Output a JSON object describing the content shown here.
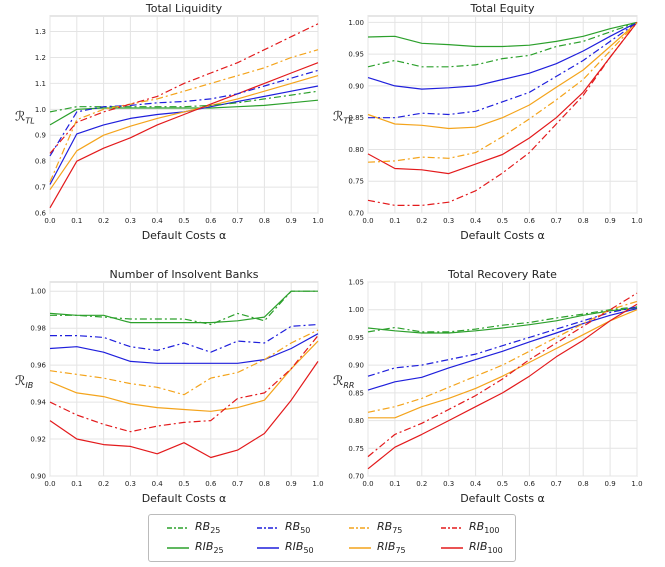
{
  "chart_data": [
    {
      "type": "line",
      "title": "Total Liquidity",
      "xlabel": "Default Costs α",
      "ylabel": "R_TL",
      "ylabel_base": "ℛ",
      "ylabel_sub": "TL",
      "xlim": [
        0.0,
        1.0
      ],
      "ylim": [
        0.6,
        1.36
      ],
      "x": [
        0.0,
        0.1,
        0.2,
        0.3,
        0.4,
        0.5,
        0.6,
        0.7,
        0.8,
        0.9,
        1.0
      ],
      "xticks": [
        "0.0",
        "0.1",
        "0.2",
        "0.3",
        "0.4",
        "0.5",
        "0.6",
        "0.7",
        "0.8",
        "0.9",
        "1.0"
      ],
      "yticks": [
        "0.6",
        "0.7",
        "0.8",
        "0.9",
        "1.0",
        "1.1",
        "1.2",
        "1.3"
      ],
      "series": [
        {
          "name": "RB_25",
          "values": [
            0.99,
            1.01,
            1.01,
            1.01,
            1.01,
            1.01,
            1.015,
            1.025,
            1.04,
            1.055,
            1.07
          ]
        },
        {
          "name": "RIB_25",
          "values": [
            0.94,
            1.0,
            1.005,
            1.005,
            1.005,
            1.005,
            1.005,
            1.01,
            1.015,
            1.025,
            1.035
          ]
        },
        {
          "name": "RB_50",
          "values": [
            0.82,
            0.99,
            1.01,
            1.015,
            1.025,
            1.03,
            1.04,
            1.06,
            1.09,
            1.12,
            1.15
          ]
        },
        {
          "name": "RIB_50",
          "values": [
            0.71,
            0.905,
            0.94,
            0.965,
            0.98,
            0.99,
            1.01,
            1.03,
            1.05,
            1.07,
            1.09
          ]
        },
        {
          "name": "RB_75",
          "values": [
            0.72,
            0.96,
            1.0,
            1.02,
            1.04,
            1.07,
            1.1,
            1.13,
            1.16,
            1.2,
            1.23
          ]
        },
        {
          "name": "RIB_75",
          "values": [
            0.69,
            0.84,
            0.9,
            0.935,
            0.965,
            0.99,
            1.015,
            1.04,
            1.07,
            1.1,
            1.13
          ]
        },
        {
          "name": "RB_100",
          "values": [
            0.83,
            0.95,
            0.99,
            1.02,
            1.05,
            1.1,
            1.14,
            1.18,
            1.23,
            1.28,
            1.33
          ]
        },
        {
          "name": "RIB_100",
          "values": [
            0.62,
            0.8,
            0.85,
            0.89,
            0.94,
            0.98,
            1.02,
            1.06,
            1.1,
            1.14,
            1.18
          ]
        }
      ]
    },
    {
      "type": "line",
      "title": "Total Equity",
      "xlabel": "Default Costs α",
      "ylabel": "R_TE",
      "ylabel_base": "ℛ",
      "ylabel_sub": "TE",
      "xlim": [
        0.0,
        1.0
      ],
      "ylim": [
        0.7,
        1.01
      ],
      "x": [
        0.0,
        0.1,
        0.2,
        0.3,
        0.4,
        0.5,
        0.6,
        0.7,
        0.8,
        0.9,
        1.0
      ],
      "xticks": [
        "0.0",
        "0.1",
        "0.2",
        "0.3",
        "0.4",
        "0.5",
        "0.6",
        "0.7",
        "0.8",
        "0.9",
        "1.0"
      ],
      "yticks": [
        "0.70",
        "0.75",
        "0.80",
        "0.85",
        "0.90",
        "0.95",
        "1.00"
      ],
      "series": [
        {
          "name": "RB_25",
          "values": [
            0.93,
            0.94,
            0.93,
            0.93,
            0.933,
            0.943,
            0.948,
            0.962,
            0.97,
            0.985,
            1.0
          ]
        },
        {
          "name": "RIB_25",
          "values": [
            0.977,
            0.978,
            0.967,
            0.965,
            0.962,
            0.962,
            0.964,
            0.97,
            0.978,
            0.99,
            1.0
          ]
        },
        {
          "name": "RB_50",
          "values": [
            0.85,
            0.85,
            0.857,
            0.855,
            0.86,
            0.875,
            0.89,
            0.915,
            0.94,
            0.97,
            1.0
          ]
        },
        {
          "name": "RIB_50",
          "values": [
            0.913,
            0.9,
            0.895,
            0.897,
            0.9,
            0.91,
            0.92,
            0.935,
            0.955,
            0.978,
            1.0
          ]
        },
        {
          "name": "RB_75",
          "values": [
            0.78,
            0.782,
            0.788,
            0.786,
            0.795,
            0.82,
            0.848,
            0.878,
            0.91,
            0.955,
            1.0
          ]
        },
        {
          "name": "RIB_75",
          "values": [
            0.855,
            0.84,
            0.838,
            0.833,
            0.835,
            0.85,
            0.87,
            0.898,
            0.925,
            0.962,
            1.0
          ]
        },
        {
          "name": "RB_100",
          "values": [
            0.72,
            0.712,
            0.712,
            0.717,
            0.735,
            0.763,
            0.795,
            0.84,
            0.885,
            0.945,
            1.0
          ]
        },
        {
          "name": "RIB_100",
          "values": [
            0.793,
            0.77,
            0.768,
            0.762,
            0.777,
            0.792,
            0.818,
            0.85,
            0.89,
            0.945,
            1.0
          ]
        }
      ]
    },
    {
      "type": "line",
      "title": "Number of Insolvent Banks",
      "xlabel": "Default Costs α",
      "ylabel": "R_IB",
      "ylabel_base": "ℛ",
      "ylabel_sub": "IB",
      "xlim": [
        0.0,
        1.0
      ],
      "ylim": [
        0.9,
        1.005
      ],
      "x": [
        0.0,
        0.1,
        0.2,
        0.3,
        0.4,
        0.5,
        0.6,
        0.7,
        0.8,
        0.9,
        1.0
      ],
      "xticks": [
        "0.0",
        "0.1",
        "0.2",
        "0.3",
        "0.4",
        "0.5",
        "0.6",
        "0.7",
        "0.8",
        "0.9",
        "1.0"
      ],
      "yticks": [
        "0.90",
        "0.92",
        "0.94",
        "0.96",
        "0.98",
        "1.00"
      ],
      "series": [
        {
          "name": "RB_25",
          "values": [
            0.987,
            0.987,
            0.986,
            0.985,
            0.985,
            0.985,
            0.982,
            0.988,
            0.984,
            1.0,
            1.0
          ]
        },
        {
          "name": "RIB_25",
          "values": [
            0.988,
            0.987,
            0.987,
            0.983,
            0.983,
            0.983,
            0.983,
            0.984,
            0.986,
            1.0,
            1.0
          ]
        },
        {
          "name": "RB_50",
          "values": [
            0.976,
            0.976,
            0.975,
            0.97,
            0.968,
            0.972,
            0.967,
            0.973,
            0.972,
            0.981,
            0.982
          ]
        },
        {
          "name": "RIB_50",
          "values": [
            0.969,
            0.97,
            0.967,
            0.962,
            0.961,
            0.961,
            0.961,
            0.961,
            0.963,
            0.969,
            0.977
          ]
        },
        {
          "name": "RB_75",
          "values": [
            0.957,
            0.955,
            0.953,
            0.95,
            0.948,
            0.944,
            0.953,
            0.956,
            0.963,
            0.972,
            0.979
          ]
        },
        {
          "name": "RIB_75",
          "values": [
            0.951,
            0.945,
            0.943,
            0.939,
            0.937,
            0.936,
            0.935,
            0.937,
            0.941,
            0.958,
            0.973
          ]
        },
        {
          "name": "RB_100",
          "values": [
            0.94,
            0.933,
            0.928,
            0.924,
            0.927,
            0.929,
            0.93,
            0.942,
            0.945,
            0.958,
            0.976
          ]
        },
        {
          "name": "RIB_100",
          "values": [
            0.93,
            0.92,
            0.917,
            0.916,
            0.912,
            0.918,
            0.91,
            0.914,
            0.923,
            0.941,
            0.962
          ]
        }
      ]
    },
    {
      "type": "line",
      "title": "Total Recovery Rate",
      "xlabel": "Default Costs α",
      "ylabel": "R_RR",
      "ylabel_base": "ℛ",
      "ylabel_sub": "RR",
      "xlim": [
        0.0,
        1.0
      ],
      "ylim": [
        0.7,
        1.05
      ],
      "x": [
        0.0,
        0.1,
        0.2,
        0.3,
        0.4,
        0.5,
        0.6,
        0.7,
        0.8,
        0.9,
        1.0
      ],
      "xticks": [
        "0.0",
        "0.1",
        "0.2",
        "0.3",
        "0.4",
        "0.5",
        "0.6",
        "0.7",
        "0.8",
        "0.9",
        "1.0"
      ],
      "yticks": [
        "0.70",
        "0.75",
        "0.80",
        "0.85",
        "0.90",
        "0.95",
        "1.00",
        "1.05"
      ],
      "series": [
        {
          "name": "RB_25",
          "values": [
            0.96,
            0.968,
            0.96,
            0.96,
            0.965,
            0.972,
            0.977,
            0.985,
            0.992,
            1.0,
            1.005
          ]
        },
        {
          "name": "RIB_25",
          "values": [
            0.967,
            0.962,
            0.958,
            0.958,
            0.962,
            0.967,
            0.973,
            0.98,
            0.99,
            0.998,
            1.003
          ]
        },
        {
          "name": "RB_50",
          "values": [
            0.88,
            0.895,
            0.9,
            0.91,
            0.92,
            0.935,
            0.95,
            0.965,
            0.98,
            0.995,
            1.005
          ]
        },
        {
          "name": "RIB_50",
          "values": [
            0.855,
            0.87,
            0.878,
            0.895,
            0.91,
            0.925,
            0.942,
            0.958,
            0.975,
            0.99,
            1.002
          ]
        },
        {
          "name": "RB_75",
          "values": [
            0.815,
            0.825,
            0.84,
            0.86,
            0.88,
            0.9,
            0.925,
            0.95,
            0.975,
            1.0,
            1.015
          ]
        },
        {
          "name": "RIB_75",
          "values": [
            0.805,
            0.805,
            0.825,
            0.84,
            0.858,
            0.88,
            0.905,
            0.93,
            0.955,
            0.98,
            1.0
          ]
        },
        {
          "name": "RB_100",
          "values": [
            0.735,
            0.775,
            0.795,
            0.82,
            0.845,
            0.875,
            0.91,
            0.94,
            0.97,
            1.0,
            1.03
          ]
        },
        {
          "name": "RIB_100",
          "values": [
            0.713,
            0.752,
            0.775,
            0.8,
            0.825,
            0.85,
            0.88,
            0.915,
            0.945,
            0.98,
            1.01
          ]
        }
      ]
    }
  ],
  "series_styles": [
    {
      "name": "RB_25",
      "base": "RB",
      "sub": "25",
      "color": "#2ca02c",
      "dash": "dashdot"
    },
    {
      "name": "RIB_25",
      "base": "RIB",
      "sub": "25",
      "color": "#2ca02c",
      "dash": "solid"
    },
    {
      "name": "RB_50",
      "base": "RB",
      "sub": "50",
      "color": "#1f1fdc",
      "dash": "dashdot"
    },
    {
      "name": "RIB_50",
      "base": "RIB",
      "sub": "50",
      "color": "#1f1fdc",
      "dash": "solid"
    },
    {
      "name": "RB_75",
      "base": "RB",
      "sub": "75",
      "color": "#f4a41c",
      "dash": "dashdot"
    },
    {
      "name": "RIB_75",
      "base": "RIB",
      "sub": "75",
      "color": "#f4a41c",
      "dash": "solid"
    },
    {
      "name": "RB_100",
      "base": "RB",
      "sub": "100",
      "color": "#e31a1c",
      "dash": "dashdot"
    },
    {
      "name": "RIB_100",
      "base": "RIB",
      "sub": "100",
      "color": "#e31a1c",
      "dash": "solid"
    }
  ],
  "grid": true,
  "legend_position": "bottom-center"
}
